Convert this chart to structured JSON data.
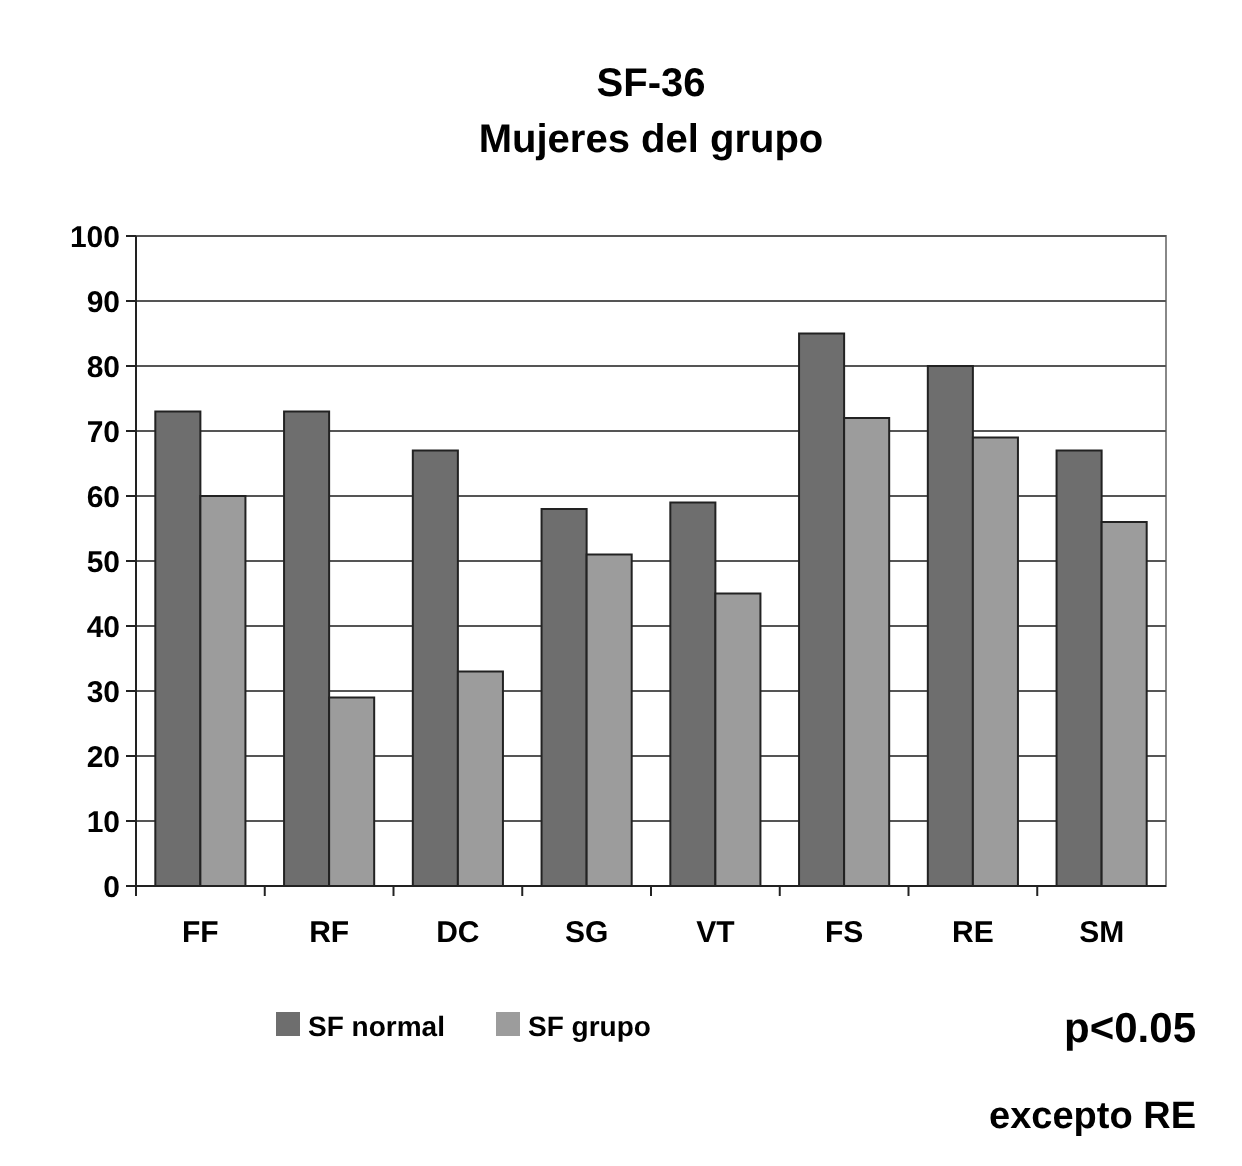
{
  "chart_data": {
    "type": "bar",
    "title": "SF-36",
    "subtitle": "Mujeres del grupo",
    "categories": [
      "FF",
      "RF",
      "DC",
      "SG",
      "VT",
      "FS",
      "RE",
      "SM"
    ],
    "series": [
      {
        "name": "SF normal",
        "color": "#6e6e6e",
        "values": [
          73,
          73,
          67,
          58,
          59,
          85,
          80,
          67
        ]
      },
      {
        "name": "SF grupo",
        "color": "#9c9c9c",
        "values": [
          60,
          29,
          33,
          51,
          45,
          72,
          69,
          56
        ]
      }
    ],
    "ylim": [
      0,
      100
    ],
    "yticks": [
      0,
      10,
      20,
      30,
      40,
      50,
      60,
      70,
      80,
      90,
      100
    ],
    "grid": "y",
    "legend": "bottom",
    "annotations": [
      "p<0.05",
      "excepto RE"
    ]
  }
}
